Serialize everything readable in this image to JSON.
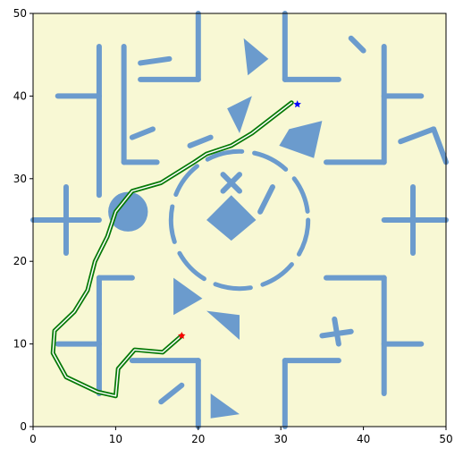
{
  "chart_data": {
    "type": "line",
    "title": "",
    "xlabel": "",
    "ylabel": "",
    "xlim": [
      0,
      50
    ],
    "ylim": [
      0,
      50
    ],
    "grid": false,
    "x_ticks": [
      "0",
      "10",
      "20",
      "30",
      "40",
      "50"
    ],
    "y_ticks": [
      "0",
      "10",
      "20",
      "30",
      "40",
      "50"
    ],
    "colors": {
      "background": "#f8f8d4",
      "obstacle": "#6b9bcd",
      "path_outer": "#087a08",
      "path_inner": "#ffffff",
      "start": "#ff0000",
      "goal": "#0000ff"
    },
    "start": [
      18,
      11
    ],
    "goal": [
      32,
      39
    ],
    "path": [
      [
        18,
        11
      ],
      [
        15.7,
        9
      ],
      [
        12.3,
        9.3
      ],
      [
        10.3,
        7
      ],
      [
        10,
        3.7
      ],
      [
        7.8,
        4.2
      ],
      [
        4,
        6
      ],
      [
        2.4,
        8.9
      ],
      [
        2.6,
        11.6
      ],
      [
        5,
        13.9
      ],
      [
        6.6,
        16.5
      ],
      [
        7.5,
        20
      ],
      [
        9,
        23
      ],
      [
        10,
        26
      ],
      [
        12,
        28.5
      ],
      [
        15.5,
        29.5
      ],
      [
        19.5,
        32
      ],
      [
        21,
        33
      ],
      [
        24,
        34
      ],
      [
        26.5,
        35.5
      ],
      [
        31.3,
        39.2
      ]
    ],
    "obstacles": {
      "lines": [
        [
          [
            3,
            40
          ],
          [
            8,
            40
          ]
        ],
        [
          [
            8,
            46
          ],
          [
            8,
            28
          ]
        ],
        [
          [
            11,
            46
          ],
          [
            11,
            32
          ]
        ],
        [
          [
            11,
            32
          ],
          [
            15,
            32
          ]
        ],
        [
          [
            13,
            44
          ],
          [
            16.5,
            44.5
          ]
        ],
        [
          [
            13,
            42
          ],
          [
            20,
            42
          ]
        ],
        [
          [
            20,
            42
          ],
          [
            20,
            50
          ]
        ],
        [
          [
            12,
            35
          ],
          [
            14.5,
            36
          ]
        ],
        [
          [
            19,
            34
          ],
          [
            21.5,
            35
          ]
        ],
        [
          [
            30.5,
            50
          ],
          [
            30.5,
            42
          ]
        ],
        [
          [
            30.5,
            42
          ],
          [
            37,
            42
          ]
        ],
        [
          [
            38.5,
            47
          ],
          [
            40,
            45.5
          ]
        ],
        [
          [
            42.5,
            46
          ],
          [
            42.5,
            32
          ]
        ],
        [
          [
            35.5,
            32
          ],
          [
            42.5,
            32
          ]
        ],
        [
          [
            42.5,
            40
          ],
          [
            47,
            40
          ]
        ],
        [
          [
            44.5,
            34.5
          ],
          [
            48.5,
            36
          ]
        ],
        [
          [
            48.5,
            36
          ],
          [
            50,
            32
          ]
        ],
        [
          [
            0,
            25
          ],
          [
            8,
            25
          ]
        ],
        [
          [
            4,
            29
          ],
          [
            4,
            21
          ]
        ],
        [
          [
            42.5,
            25
          ],
          [
            50,
            25
          ]
        ],
        [
          [
            46,
            29
          ],
          [
            46,
            21
          ]
        ],
        [
          [
            8,
            4
          ],
          [
            8,
            18
          ]
        ],
        [
          [
            8,
            18
          ],
          [
            12,
            18
          ]
        ],
        [
          [
            3,
            10
          ],
          [
            8,
            10
          ]
        ],
        [
          [
            12,
            8
          ],
          [
            20,
            8
          ]
        ],
        [
          [
            20,
            8
          ],
          [
            20,
            0
          ]
        ],
        [
          [
            18,
            5
          ],
          [
            15.5,
            3
          ]
        ],
        [
          [
            30.5,
            0
          ],
          [
            30.5,
            8
          ]
        ],
        [
          [
            30.5,
            8
          ],
          [
            37,
            8
          ]
        ],
        [
          [
            36.5,
            13
          ],
          [
            37,
            10
          ]
        ],
        [
          [
            35,
            11
          ],
          [
            38.5,
            11.5
          ]
        ],
        [
          [
            42.5,
            10
          ],
          [
            47,
            10
          ]
        ],
        [
          [
            42.5,
            4
          ],
          [
            42.5,
            18
          ]
        ],
        [
          [
            35.5,
            18
          ],
          [
            42.5,
            18
          ]
        ],
        [
          [
            23,
            30.5
          ],
          [
            25,
            28.5
          ]
        ],
        [
          [
            23,
            28.5
          ],
          [
            25,
            30.5
          ]
        ],
        [
          [
            29,
            29
          ],
          [
            27.5,
            26
          ]
        ]
      ],
      "polygons": [
        [
          [
            25.5,
            47
          ],
          [
            26,
            42.5
          ],
          [
            28.5,
            44.5
          ]
        ],
        [
          [
            23.5,
            38.5
          ],
          [
            26.5,
            40
          ],
          [
            25,
            35.5
          ]
        ],
        [
          [
            31,
            36
          ],
          [
            35,
            37
          ],
          [
            34,
            32.5
          ],
          [
            29.8,
            34
          ]
        ],
        [
          [
            24,
            22.5
          ],
          [
            27,
            25
          ],
          [
            24,
            28
          ],
          [
            21,
            25
          ]
        ],
        [
          [
            17,
            13.5
          ],
          [
            17,
            18
          ],
          [
            20.5,
            15.5
          ]
        ],
        [
          [
            21,
            14
          ],
          [
            25,
            13.5
          ],
          [
            25,
            10.5
          ]
        ],
        [
          [
            21.5,
            1
          ],
          [
            21.5,
            4
          ],
          [
            25,
            1.5
          ]
        ]
      ],
      "circles": [
        {
          "center": [
            11.5,
            26
          ],
          "r": 2.4
        }
      ],
      "dashed_ring": {
        "center": [
          25,
          25
        ],
        "r": 8.3
      }
    }
  }
}
